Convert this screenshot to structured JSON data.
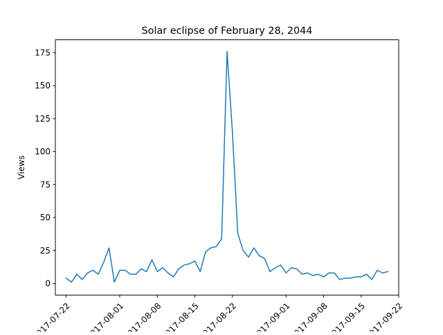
{
  "chart_data": {
    "type": "line",
    "title": "Solar eclipse of February 28, 2044",
    "xlabel": "",
    "ylabel": "Views",
    "x_start": "2017-07-22",
    "x_end": "2017-09-20",
    "xlim": [
      "2017-07-20",
      "2017-09-22"
    ],
    "ylim": [
      -8.8,
      184.8
    ],
    "yticks": [
      0,
      25,
      50,
      75,
      100,
      125,
      150,
      175
    ],
    "xticks": [
      "2017-07-22",
      "2017-08-01",
      "2017-08-08",
      "2017-08-15",
      "2017-08-22",
      "2017-09-01",
      "2017-09-08",
      "2017-09-15",
      "2017-09-22"
    ],
    "xtick_labels": [
      "2017-07-22",
      "2017-08-01",
      "2017-08-08",
      "2017-08-15",
      "2017-08-22",
      "2017-09-01",
      "2017-09-08",
      "2017-09-15",
      "2017-09-22"
    ],
    "grid": false,
    "line_color": "#1f77b4",
    "series": [
      {
        "values": [
          4,
          1,
          7,
          3,
          8,
          10,
          7,
          16,
          27,
          1,
          10,
          10,
          7,
          7,
          11,
          9,
          18,
          9,
          12,
          8,
          5,
          11,
          14,
          15,
          17,
          9,
          24,
          27,
          28,
          34,
          176,
          115,
          38,
          25,
          20,
          27,
          21,
          19,
          9,
          12,
          14,
          8,
          12,
          11,
          7,
          8,
          6,
          7,
          5,
          8,
          8,
          3,
          4,
          4,
          5,
          5,
          7,
          3,
          10,
          8,
          9
        ]
      }
    ]
  }
}
